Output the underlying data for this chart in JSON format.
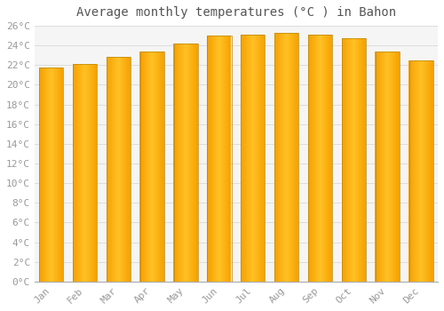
{
  "title": "Average monthly temperatures (°C ) in Bahon",
  "months": [
    "Jan",
    "Feb",
    "Mar",
    "Apr",
    "May",
    "Jun",
    "Jul",
    "Aug",
    "Sep",
    "Oct",
    "Nov",
    "Dec"
  ],
  "values": [
    21.8,
    22.1,
    22.8,
    23.4,
    24.2,
    25.0,
    25.1,
    25.3,
    25.1,
    24.7,
    23.4,
    22.5
  ],
  "bar_color_center": "#FFC125",
  "bar_color_edge": "#F5A000",
  "bar_outline_color": "#B8860B",
  "ylim": [
    0,
    26
  ],
  "ytick_step": 2,
  "background_color": "#ffffff",
  "plot_bg_color": "#f5f5f5",
  "grid_color": "#dddddd",
  "title_fontsize": 10,
  "tick_fontsize": 8,
  "tick_font_color": "#999999",
  "title_font_color": "#555555"
}
